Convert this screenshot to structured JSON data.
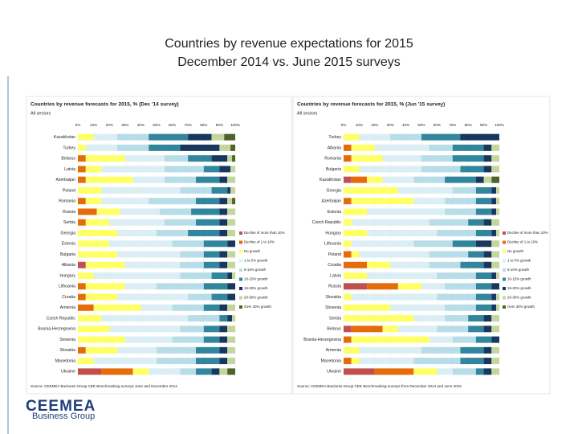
{
  "slide_title": {
    "line1": "Countries by revenue expectations for 2015",
    "line2": "December 2014 vs. June 2015 surveys"
  },
  "logo": {
    "name": "CEEMEA",
    "tagline": "Business Group"
  },
  "chart_data": [
    {
      "type": "bar",
      "orientation": "horizontal",
      "stacked": true,
      "title": "Countries by revenue forecasts for 2015, % (Dec '14 survey)",
      "subtitle": "All sectors",
      "source": "Source: CEEMEA Business Group CEE Benchmarking surveys June and December 2014",
      "xlim": [
        0,
        100
      ],
      "xticks": [
        {
          "value": 0,
          "label": "0%"
        },
        {
          "value": 10,
          "label": "10%"
        },
        {
          "value": 20,
          "label": "20%"
        },
        {
          "value": 30,
          "label": "30%"
        },
        {
          "value": 40,
          "label": "40%"
        },
        {
          "value": 50,
          "label": "50%"
        },
        {
          "value": 60,
          "label": "60%"
        },
        {
          "value": 70,
          "label": "70%"
        },
        {
          "value": 80,
          "label": "80%"
        },
        {
          "value": 90,
          "label": "90%"
        },
        {
          "value": 100,
          "label": "100%"
        }
      ],
      "categories": [
        "Kazakhstan",
        "Turkey",
        "Belarus",
        "Latvia",
        "Azerbaijan",
        "Poland",
        "Romania",
        "Russia",
        "Serbia",
        "Georgia",
        "Estonia",
        "Bulgaria",
        "Albania",
        "Hungary",
        "Lithuania",
        "Croatia",
        "Armenia",
        "Czech Republic",
        "Bosnia-Herzegovina",
        "Slovenia",
        "Slovakia",
        "Macedonia",
        "Ukraine"
      ],
      "series": [
        {
          "name": "Decline of more than 10%",
          "color": "#c0504d",
          "values": [
            0,
            0,
            0,
            0,
            0,
            0,
            0,
            0,
            0,
            0,
            0,
            0,
            5,
            0,
            0,
            0,
            0,
            0,
            0,
            0,
            0,
            0,
            15
          ]
        },
        {
          "name": "Decline of 1 to 10%",
          "color": "#e46c0a",
          "values": [
            0,
            0,
            5,
            5,
            5,
            0,
            5,
            12,
            5,
            0,
            0,
            0,
            0,
            0,
            5,
            5,
            10,
            0,
            0,
            0,
            5,
            0,
            20
          ]
        },
        {
          "name": "No growth",
          "color": "#ffff66",
          "values": [
            10,
            5,
            25,
            10,
            30,
            15,
            10,
            15,
            15,
            25,
            20,
            25,
            25,
            10,
            25,
            20,
            30,
            15,
            20,
            30,
            20,
            10,
            10
          ]
        },
        {
          "name": "1 to 5% growth",
          "color": "#dbeef4",
          "values": [
            15,
            20,
            25,
            40,
            20,
            50,
            30,
            25,
            35,
            25,
            40,
            40,
            35,
            55,
            20,
            45,
            20,
            55,
            45,
            30,
            25,
            40,
            20
          ]
        },
        {
          "name": "5-10% growth",
          "color": "#b7dde8",
          "values": [
            20,
            20,
            15,
            25,
            20,
            20,
            30,
            20,
            20,
            20,
            20,
            15,
            15,
            20,
            30,
            15,
            20,
            20,
            15,
            20,
            25,
            25,
            10
          ]
        },
        {
          "name": "10-15% growth",
          "color": "#31859c",
          "values": [
            25,
            20,
            15,
            10,
            15,
            10,
            15,
            18,
            15,
            20,
            15,
            10,
            10,
            10,
            15,
            10,
            10,
            5,
            10,
            10,
            15,
            15,
            10
          ]
        },
        {
          "name": "15-20% growth",
          "color": "#17375e",
          "values": [
            15,
            25,
            10,
            7,
            5,
            2,
            5,
            5,
            5,
            5,
            5,
            5,
            5,
            3,
            5,
            5,
            5,
            3,
            5,
            5,
            5,
            5,
            5
          ]
        },
        {
          "name": "20-30% growth",
          "color": "#c3d69b",
          "values": [
            8,
            7,
            3,
            3,
            5,
            3,
            3,
            5,
            5,
            5,
            0,
            5,
            5,
            2,
            0,
            0,
            5,
            2,
            5,
            5,
            5,
            5,
            5
          ]
        },
        {
          "name": "Over 30% growth",
          "color": "#4f6228",
          "values": [
            7,
            3,
            2,
            0,
            0,
            0,
            2,
            0,
            0,
            0,
            0,
            0,
            0,
            0,
            0,
            0,
            0,
            0,
            0,
            0,
            0,
            0,
            5
          ]
        }
      ]
    },
    {
      "type": "bar",
      "orientation": "horizontal",
      "stacked": true,
      "title": "Countries by revenue forecasts for 2015, % (Jun '15 survey)",
      "subtitle": "All sectors",
      "source": "Source: CEEMEA Business Group CEE Benchmarking surveys from December 2014 and June 2015",
      "xlim": [
        0,
        100
      ],
      "xticks": [
        {
          "value": 0,
          "label": "0%"
        },
        {
          "value": 10,
          "label": "10%"
        },
        {
          "value": 20,
          "label": "20%"
        },
        {
          "value": 30,
          "label": "30%"
        },
        {
          "value": 40,
          "label": "40%"
        },
        {
          "value": 50,
          "label": "50%"
        },
        {
          "value": 60,
          "label": "60%"
        },
        {
          "value": 70,
          "label": "70%"
        },
        {
          "value": 80,
          "label": "80%"
        },
        {
          "value": 90,
          "label": "90%"
        },
        {
          "value": 100,
          "label": "100%"
        }
      ],
      "categories": [
        "Turkey",
        "Albania",
        "Romania",
        "Bulgaria",
        "Kazakhstan",
        "Georgia",
        "Azerbaijan",
        "Estonia",
        "Czech Republic",
        "Hungary",
        "Lithuania",
        "Poland",
        "Croatia",
        "Latvia",
        "Russia",
        "Slovakia",
        "Slovenia",
        "Serbia",
        "Belarus",
        "Bosnia-Herzegovina",
        "Armenia",
        "Macedonia",
        "Ukraine"
      ],
      "series": [
        {
          "name": "Decline of more than 10%",
          "color": "#c0504d",
          "values": [
            0,
            0,
            0,
            0,
            5,
            0,
            0,
            0,
            0,
            0,
            0,
            0,
            0,
            0,
            15,
            0,
            0,
            0,
            5,
            0,
            0,
            0,
            20
          ]
        },
        {
          "name": "Decline of 1 to 10%",
          "color": "#e46c0a",
          "values": [
            0,
            5,
            5,
            0,
            10,
            0,
            5,
            0,
            0,
            0,
            0,
            5,
            15,
            0,
            20,
            0,
            0,
            0,
            20,
            5,
            0,
            5,
            25
          ]
        },
        {
          "name": "No growth",
          "color": "#ffff66",
          "values": [
            10,
            15,
            20,
            10,
            10,
            35,
            40,
            15,
            5,
            15,
            5,
            5,
            15,
            15,
            15,
            5,
            30,
            45,
            10,
            50,
            10,
            5,
            15
          ]
        },
        {
          "name": "1 to 5% growth",
          "color": "#dbeef4",
          "values": [
            20,
            35,
            25,
            40,
            20,
            35,
            20,
            50,
            50,
            45,
            40,
            45,
            25,
            45,
            15,
            55,
            35,
            20,
            25,
            15,
            40,
            35,
            10
          ]
        },
        {
          "name": "5-10% growth",
          "color": "#b7dde8",
          "values": [
            20,
            15,
            20,
            25,
            20,
            15,
            20,
            20,
            25,
            25,
            25,
            25,
            20,
            25,
            20,
            25,
            20,
            15,
            20,
            15,
            25,
            30,
            15
          ]
        },
        {
          "name": "10-15% growth",
          "color": "#31859c",
          "values": [
            25,
            20,
            20,
            15,
            20,
            10,
            10,
            10,
            10,
            10,
            15,
            10,
            15,
            10,
            10,
            10,
            10,
            10,
            10,
            10,
            15,
            15,
            5
          ]
        },
        {
          "name": "15-20% growth",
          "color": "#17375e",
          "values": [
            25,
            5,
            5,
            5,
            5,
            3,
            3,
            3,
            5,
            3,
            10,
            5,
            5,
            3,
            5,
            3,
            3,
            5,
            5,
            5,
            5,
            5,
            5
          ]
        },
        {
          "name": "20-30% growth",
          "color": "#c3d69b",
          "values": [
            0,
            5,
            5,
            5,
            5,
            2,
            2,
            2,
            5,
            2,
            5,
            5,
            5,
            2,
            0,
            2,
            2,
            5,
            5,
            0,
            5,
            5,
            5
          ]
        },
        {
          "name": "Over 30% growth",
          "color": "#4f6228",
          "values": [
            0,
            0,
            0,
            0,
            5,
            0,
            0,
            0,
            0,
            0,
            0,
            0,
            0,
            0,
            0,
            0,
            0,
            0,
            0,
            0,
            0,
            0,
            0
          ]
        }
      ]
    }
  ]
}
